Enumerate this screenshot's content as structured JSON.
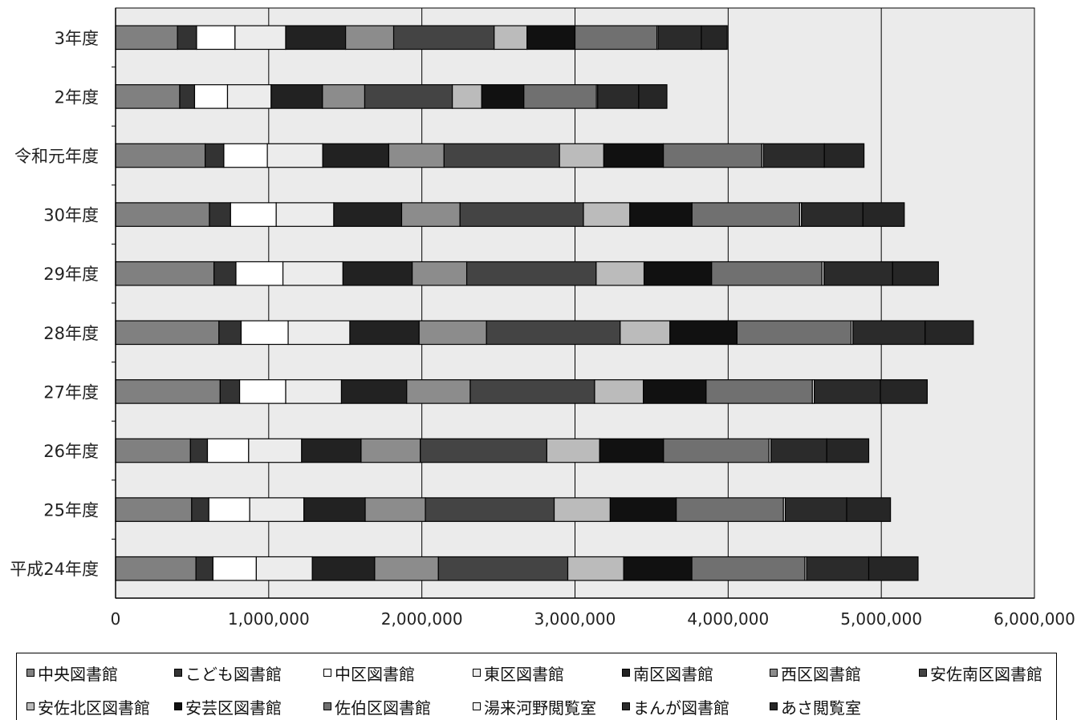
{
  "chart_data": {
    "type": "bar",
    "orientation": "horizontal",
    "stacked": true,
    "categories": [
      "3年度",
      "2年度",
      "令和元年度",
      "30年度",
      "29年度",
      "28年度",
      "27年度",
      "26年度",
      "25年度",
      "平成24年度"
    ],
    "x_ticks": [
      "0",
      "1,000,000",
      "2,000,000",
      "3,000,000",
      "4,000,000",
      "5,000,000",
      "6,000,000"
    ],
    "xlim": [
      0,
      6000000
    ],
    "grid": true,
    "legend_position": "bottom",
    "series": [
      {
        "name": "中央図書館",
        "color": "#808080",
        "values": [
          404000,
          419000,
          585000,
          613000,
          643000,
          675000,
          683000,
          489000,
          497000,
          525000
        ]
      },
      {
        "name": "こども図書館",
        "color": "#333333",
        "values": [
          125000,
          97000,
          122000,
          138000,
          143000,
          145000,
          127000,
          111000,
          112000,
          111000
        ]
      },
      {
        "name": "中区図書館",
        "color": "#ffffff",
        "values": [
          251000,
          215000,
          284000,
          298000,
          307000,
          307000,
          301000,
          269000,
          267000,
          283000
        ]
      },
      {
        "name": "東区図書館",
        "color": "#ececec",
        "values": [
          331000,
          285000,
          362000,
          376000,
          392000,
          403000,
          364000,
          346000,
          354000,
          366000
        ]
      },
      {
        "name": "南区図書館",
        "color": "#222222",
        "values": [
          391000,
          335000,
          431000,
          443000,
          452000,
          452000,
          426000,
          388000,
          400000,
          407000
        ]
      },
      {
        "name": "西区図書館",
        "color": "#8c8c8c",
        "values": [
          314000,
          276000,
          361000,
          381000,
          356000,
          440000,
          415000,
          387000,
          393000,
          416000
        ]
      },
      {
        "name": "安佐南区図書館",
        "color": "#444444",
        "values": [
          656000,
          572000,
          754000,
          806000,
          845000,
          873000,
          812000,
          826000,
          841000,
          845000
        ]
      },
      {
        "name": "安佐北区図書館",
        "color": "#bbbbbb",
        "values": [
          215000,
          192000,
          289000,
          303000,
          313000,
          325000,
          318000,
          345000,
          366000,
          365000
        ]
      },
      {
        "name": "安芸区図書館",
        "color": "#111111",
        "values": [
          313000,
          275000,
          389000,
          406000,
          441000,
          438000,
          410000,
          417000,
          431000,
          445000
        ]
      },
      {
        "name": "佐伯区図書館",
        "color": "#707070",
        "values": [
          535000,
          474000,
          643000,
          703000,
          721000,
          745000,
          694000,
          689000,
          700000,
          738000
        ]
      },
      {
        "name": "湯来河野閲覧室",
        "color": "#f2f2f2",
        "values": [
          8000,
          8000,
          11000,
          12000,
          13000,
          12000,
          12000,
          12000,
          12000,
          11000
        ]
      },
      {
        "name": "まんが図書館",
        "color": "#2b2b2b",
        "values": [
          282000,
          268000,
          397000,
          401000,
          448000,
          471000,
          432000,
          365000,
          401000,
          406000
        ]
      },
      {
        "name": "あさ閲覧室",
        "color": "#262626",
        "values": [
          169000,
          184000,
          259000,
          270000,
          299000,
          315000,
          306000,
          274000,
          286000,
          322000
        ]
      }
    ]
  }
}
